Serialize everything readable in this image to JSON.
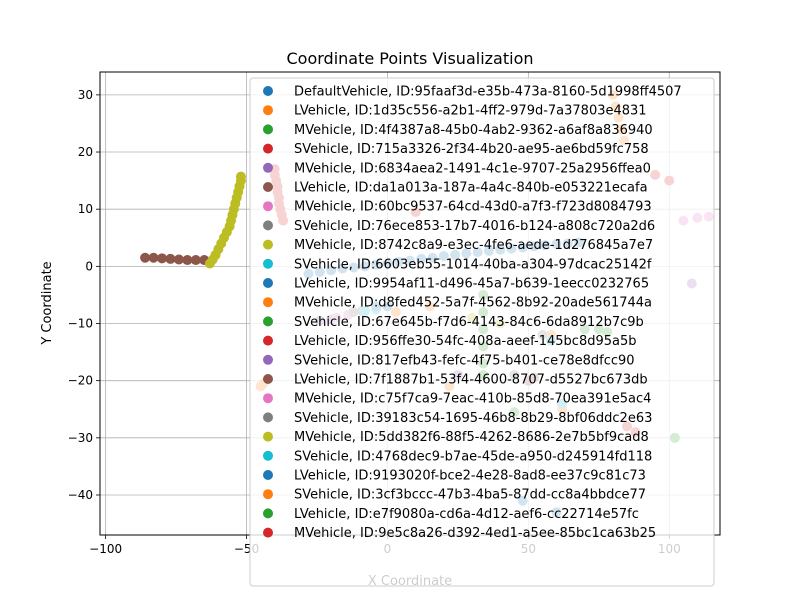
{
  "chart_data": {
    "type": "scatter",
    "title": "Coordinate Points Visualization",
    "xlabel": "X Coordinate",
    "ylabel": "Y Coordinate",
    "xlim": [
      -102,
      118
    ],
    "ylim": [
      -47,
      34
    ],
    "xticks": [
      -100,
      -50,
      0,
      50,
      100
    ],
    "xtick_labels": [
      "−100",
      "−50",
      "0",
      "50",
      "100"
    ],
    "yticks": [
      -40,
      -30,
      -20,
      -10,
      0,
      10,
      20,
      30
    ],
    "ytick_labels": [
      "−40",
      "−30",
      "−20",
      "−10",
      "0",
      "10",
      "20",
      "30"
    ],
    "grid": true,
    "legend_position": "top-right",
    "series": [
      {
        "name": "DefaultVehicle, ID:95faaf3d-e35b-473a-8160-5d1998ff4507",
        "color": "#1f77b4",
        "points": [
          [
            -28,
            -1.3
          ],
          [
            -24,
            -1.0
          ],
          [
            -20,
            -0.7
          ],
          [
            -16,
            -0.4
          ],
          [
            -12,
            -0.2
          ],
          [
            -8,
            0.0
          ],
          [
            -4,
            0.3
          ],
          [
            0,
            0.5
          ],
          [
            4,
            0.8
          ],
          [
            8,
            1.0
          ],
          [
            12,
            1.3
          ],
          [
            16,
            1.5
          ],
          [
            20,
            1.8
          ],
          [
            24,
            2.0
          ],
          [
            28,
            2.3
          ],
          [
            32,
            2.5
          ],
          [
            36,
            2.7
          ],
          [
            40,
            2.9
          ],
          [
            44,
            3.1
          ],
          [
            48,
            3.3
          ],
          [
            52,
            3.5
          ],
          [
            56,
            3.7
          ],
          [
            60,
            3.9
          ],
          [
            64,
            4.0
          ],
          [
            68,
            4.2
          ]
        ]
      },
      {
        "name": "LVehicle, ID:1d35c556-a2b1-4ff2-979d-7a37803e4831",
        "color": "#ff7f0e",
        "points": [
          [
            80,
            30
          ],
          [
            81,
            28
          ],
          [
            82,
            26
          ],
          [
            83,
            24
          ],
          [
            84,
            22
          ]
        ]
      },
      {
        "name": "MVehicle, ID:4f4387a8-45b0-4ab2-9362-a6af8a836940",
        "color": "#2ca02c",
        "points": [
          [
            34,
            -5
          ],
          [
            34,
            -8
          ],
          [
            34,
            -11
          ],
          [
            34,
            -14
          ],
          [
            34,
            -17
          ],
          [
            34,
            -19
          ]
        ]
      },
      {
        "name": "SVehicle, ID:715a3326-2f34-4b20-ae95-ae6bd59fc758",
        "color": "#d62728",
        "points": [
          [
            -40,
            17
          ],
          [
            -40,
            16
          ],
          [
            -39.5,
            15
          ],
          [
            -39,
            14
          ],
          [
            -39,
            13
          ],
          [
            -38.5,
            12
          ],
          [
            -38.5,
            11
          ],
          [
            -38,
            10
          ],
          [
            -37.5,
            9
          ],
          [
            -37,
            8
          ]
        ]
      },
      {
        "name": "MVehicle, ID:6834aea2-1491-4c1e-9707-25a2956ffea0",
        "color": "#9467bd",
        "points": [
          [
            -24,
            -9.5
          ],
          [
            -20,
            -9.3
          ]
        ]
      },
      {
        "name": "LVehicle, ID:da1a013a-187a-4a4c-840b-e053221ecafa",
        "color": "#8c564b",
        "points": [
          [
            -86,
            1.5
          ],
          [
            -83,
            1.5
          ],
          [
            -80,
            1.4
          ],
          [
            -77,
            1.3
          ],
          [
            -74,
            1.2
          ],
          [
            -71,
            1.1
          ],
          [
            -68,
            1.1
          ],
          [
            -65,
            1.1
          ]
        ]
      },
      {
        "name": "MVehicle, ID:60bc9537-64cd-43d0-a7f3-f723d8084793",
        "color": "#e377c2",
        "points": [
          [
            -18,
            -9
          ],
          [
            -14,
            -8.5
          ]
        ]
      },
      {
        "name": "SVehicle, ID:76ece853-17b7-4016-b124-a808c720a2d6",
        "color": "#7f7f7f",
        "points": [
          [
            -12,
            -8
          ],
          [
            -9,
            -7.8
          ]
        ]
      },
      {
        "name": "MVehicle, ID:8742c8a9-e3ec-4fe6-aede-1d276845a7e7",
        "color": "#bcbd22",
        "points": [
          [
            -63,
            0.5
          ],
          [
            -62,
            1.2
          ],
          [
            -61,
            2
          ],
          [
            -60,
            3
          ],
          [
            -59,
            4
          ],
          [
            -58,
            5
          ],
          [
            -57,
            6
          ],
          [
            -56,
            7
          ],
          [
            -55.5,
            8
          ],
          [
            -55,
            9
          ],
          [
            -54.5,
            10
          ],
          [
            -54,
            11
          ],
          [
            -53.5,
            12
          ],
          [
            -53,
            13
          ],
          [
            -52.5,
            14
          ],
          [
            -52,
            15
          ],
          [
            -52,
            15.7
          ]
        ]
      },
      {
        "name": "SVehicle, ID:6603eb55-1014-40ba-a304-97dcac25142f",
        "color": "#17becf",
        "points": [
          [
            -8,
            -7.8
          ],
          [
            -4,
            -7.5
          ]
        ]
      },
      {
        "name": "LVehicle, ID:9954af11-d496-45a7-b639-1eecc0232765",
        "color": "#1f77b4",
        "points": [
          [
            -4,
            -7
          ],
          [
            0,
            -7
          ]
        ]
      },
      {
        "name": "MVehicle, ID:d8fed452-5a7f-4562-8b92-20ade561744a",
        "color": "#ff7f0e",
        "points": [
          [
            3,
            -8
          ],
          [
            15,
            -7
          ],
          [
            22,
            -21
          ],
          [
            58,
            -12
          ],
          [
            62,
            -25
          ]
        ]
      },
      {
        "name": "SVehicle, ID:67e645b-f7d6-4143-84c6-6da8912b7c9b",
        "color": "#2ca02c",
        "points": [
          [
            45,
            -25.5
          ],
          [
            70,
            -11
          ],
          [
            102,
            -30
          ]
        ]
      },
      {
        "name": "LVehicle, ID:956ffe30-54fc-408a-aeef-145bc8d95a5b",
        "color": "#d62728",
        "points": [
          [
            10,
            9.5
          ],
          [
            95,
            16
          ],
          [
            100,
            15
          ]
        ]
      },
      {
        "name": "SVehicle, ID:817efb43-fefc-4f75-b401-ce78e8dfcc90",
        "color": "#9467bd",
        "points": [
          [
            25,
            -19
          ],
          [
            108,
            -3
          ]
        ]
      },
      {
        "name": "LVehicle, ID:7f1887b1-53f4-4600-8707-d5527bc673db",
        "color": "#8c564b",
        "points": [
          [
            50,
            -20
          ],
          [
            52,
            -19.5
          ]
        ]
      },
      {
        "name": "MVehicle, ID:c75f7ca9-7eac-410b-85d8-70ea391e5ac4",
        "color": "#e377c2",
        "points": [
          [
            105,
            8
          ],
          [
            110,
            8.5
          ],
          [
            114,
            8.7
          ]
        ]
      },
      {
        "name": "SVehicle, ID:39183c54-1695-46b8-8b29-8bf06ddc2e63",
        "color": "#7f7f7f",
        "points": [
          [
            45,
            -19
          ],
          [
            55,
            -12
          ]
        ]
      },
      {
        "name": "MVehicle, ID:5dd382f6-88f5-4262-8686-2e7b5bf9cad8",
        "color": "#bcbd22",
        "points": [
          [
            30,
            -9
          ],
          [
            40,
            -10
          ]
        ]
      },
      {
        "name": "SVehicle, ID:4768dec9-b7ae-45de-a950-d245914fd118",
        "color": "#17becf",
        "points": [
          [
            58,
            -13
          ],
          [
            62,
            -24
          ]
        ]
      },
      {
        "name": "LVehicle, ID:9193020f-bce2-4e28-8ad8-ee37c9c81c73",
        "color": "#1f77b4",
        "points": [
          [
            48,
            -41
          ],
          [
            60,
            -43
          ]
        ]
      },
      {
        "name": "SVehicle, ID:3cf3bccc-47b3-4ba5-87dd-cc8a4bbdce77",
        "color": "#ff7f0e",
        "points": [
          [
            -45,
            -21
          ],
          [
            -44,
            -20.5
          ]
        ]
      },
      {
        "name": "LVehicle, ID:e7f9080a-cd6a-4d12-aef6-cc22714e57fc",
        "color": "#2ca02c",
        "points": [
          [
            75,
            -11
          ],
          [
            78,
            -11.5
          ]
        ]
      },
      {
        "name": "MVehicle, ID:9e5c8a26-d392-4ed1-a5ee-85bc1ca63b25",
        "color": "#d62728",
        "points": [
          [
            85,
            -28
          ],
          [
            88,
            -29
          ]
        ]
      }
    ]
  }
}
